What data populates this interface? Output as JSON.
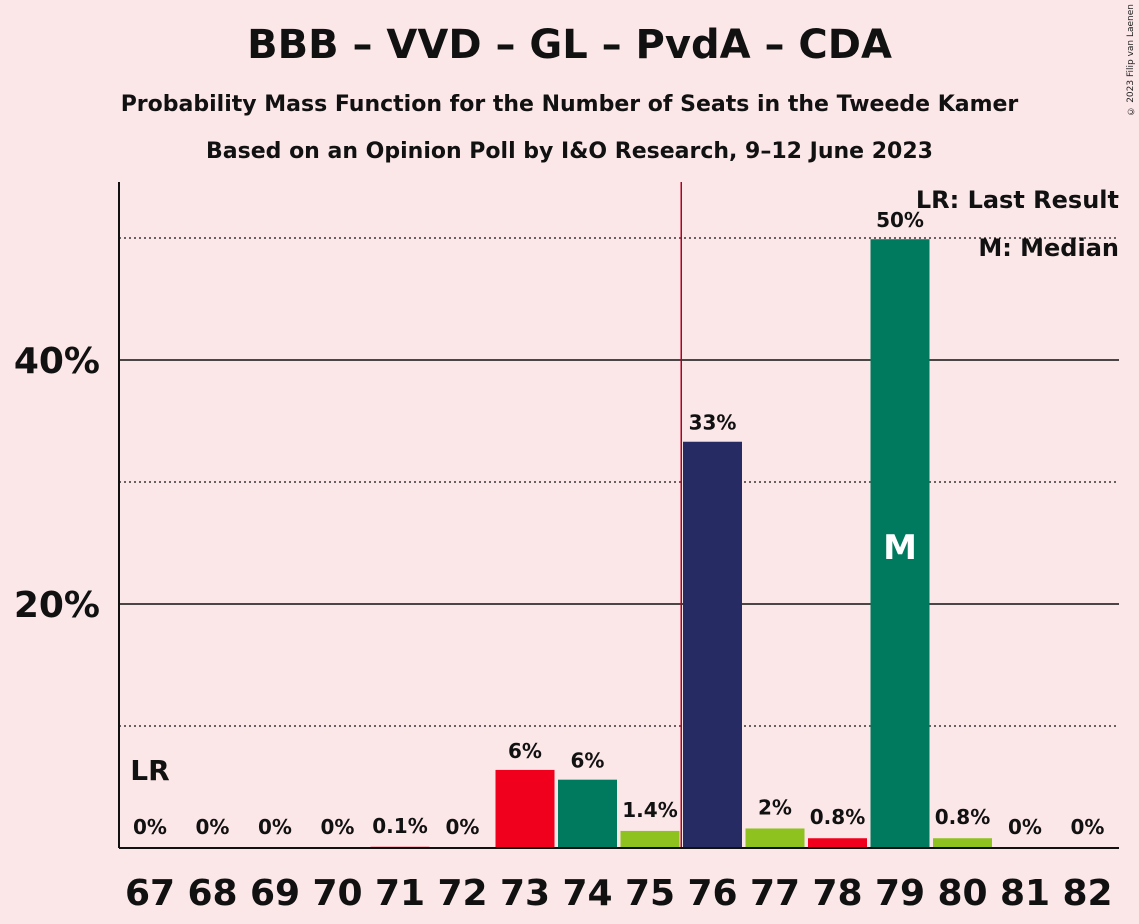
{
  "title": "BBB – VVD – GL – PvdA – CDA",
  "subtitle1": "Probability Mass Function for the Number of Seats in the Tweede Kamer",
  "subtitle2": "Based on an Opinion Poll by I&O Research, 9–12 June 2023",
  "copyright": "© 2023 Filip van Laenen",
  "legend": {
    "lr": "LR: Last Result",
    "m": "M: Median"
  },
  "markers": {
    "last_result_label": "LR",
    "median_label": "M"
  },
  "colors": {
    "background": "#fbe6e8",
    "red": "#f0001c",
    "green": "#007a5e",
    "lime": "#8dc21f",
    "navy": "#262b63",
    "majority_line": "#b00020"
  },
  "chart_data": {
    "type": "bar",
    "categories": [
      "67",
      "68",
      "69",
      "70",
      "71",
      "72",
      "73",
      "74",
      "75",
      "76",
      "77",
      "78",
      "79",
      "80",
      "81",
      "82"
    ],
    "values": [
      0,
      0,
      0,
      0,
      0.1,
      0,
      6.4,
      5.6,
      1.4,
      33.3,
      1.6,
      0.8,
      49.9,
      0.8,
      0,
      0
    ],
    "value_labels": [
      "0%",
      "0%",
      "0%",
      "0%",
      "0.1%",
      "0%",
      "6%",
      "6%",
      "1.4%",
      "33%",
      "2%",
      "0.8%",
      "50%",
      "0.8%",
      "0%",
      "0%"
    ],
    "bar_colors": [
      "#f0001c",
      "#f0001c",
      "#f0001c",
      "#f0001c",
      "#f0001c",
      "#f0001c",
      "#f0001c",
      "#007a5e",
      "#8dc21f",
      "#262b63",
      "#8dc21f",
      "#f0001c",
      "#007a5e",
      "#8dc21f",
      "#007a5e",
      "#007a5e"
    ],
    "yticks": [
      20,
      40
    ],
    "ytick_labels": [
      "20%",
      "40%"
    ],
    "minor_gridlines": [
      10,
      30,
      50
    ],
    "ylim": [
      0,
      54.5
    ],
    "last_result": "67",
    "median": "79",
    "majority_between": [
      "75",
      "76"
    ]
  }
}
